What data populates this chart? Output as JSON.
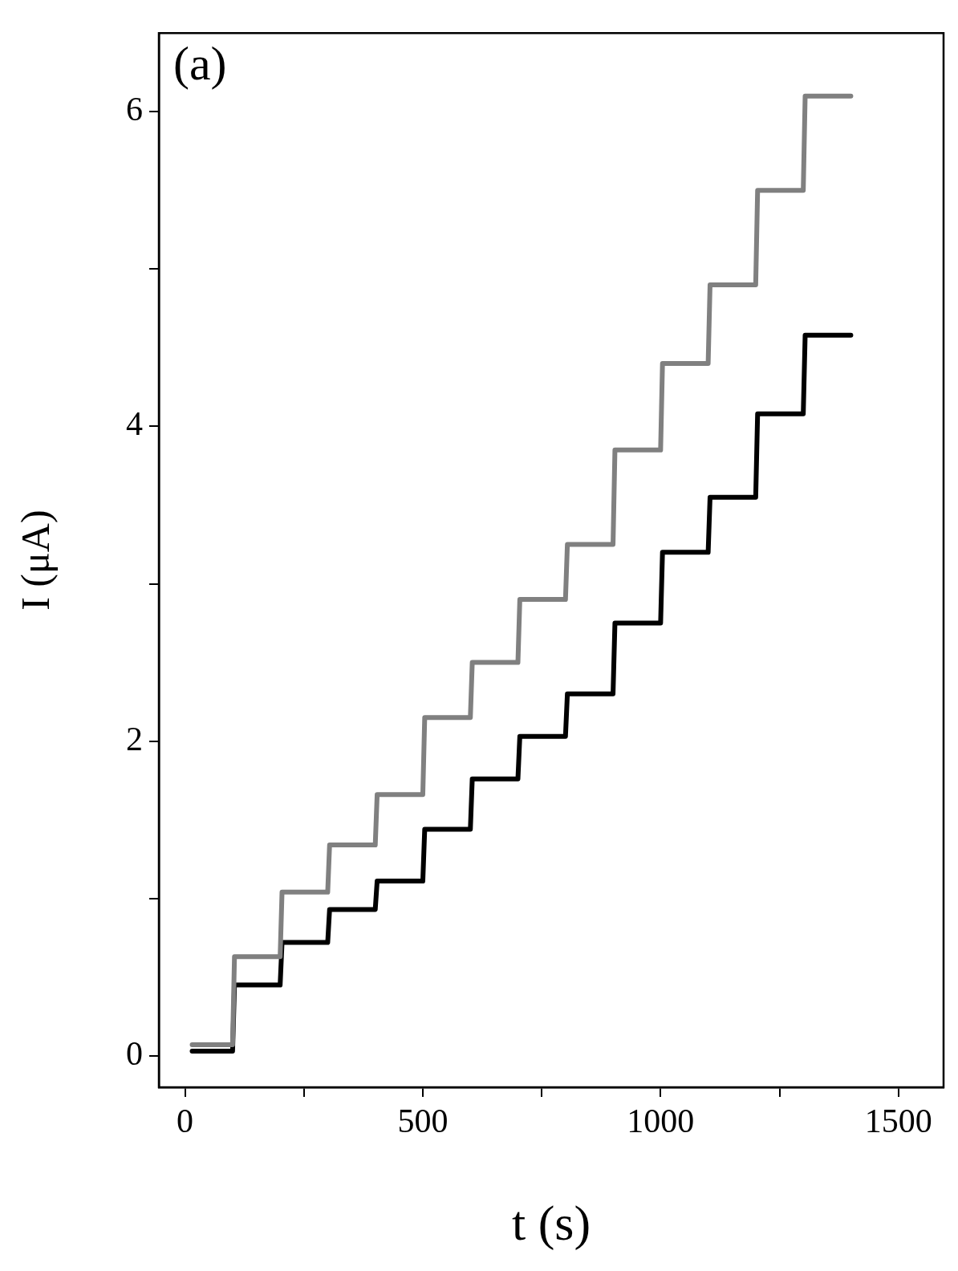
{
  "chart_data": {
    "type": "line",
    "xlabel": "t (s)",
    "ylabel": "I (μA)",
    "annotations": [
      "(a)"
    ],
    "xlim": [
      -55,
      1595
    ],
    "ylim": [
      -0.2,
      6.5
    ],
    "xticks": [
      0,
      {
        "value": 250,
        "label": null
      },
      500,
      {
        "value": 750,
        "label": null
      },
      1000,
      {
        "value": 1250,
        "label": null
      },
      1500
    ],
    "yticks": [
      0,
      {
        "value": 1,
        "label": null
      },
      2,
      {
        "value": 3,
        "label": null
      },
      4,
      {
        "value": 5,
        "label": null
      },
      6
    ],
    "grid": false,
    "legend": false,
    "marker": "none",
    "line_style": "solid",
    "series": [
      {
        "color": "#808080",
        "x": [
          15,
          100,
          104,
          200,
          204,
          300,
          304,
          400,
          404,
          500,
          504,
          600,
          604,
          700,
          704,
          800,
          804,
          900,
          904,
          1000,
          1004,
          1100,
          1104,
          1200,
          1204,
          1300,
          1304,
          1400
        ],
        "values": [
          0.07,
          0.07,
          0.63,
          0.63,
          1.04,
          1.04,
          1.34,
          1.34,
          1.66,
          1.66,
          2.15,
          2.15,
          2.5,
          2.5,
          2.9,
          2.9,
          3.25,
          3.25,
          3.85,
          3.85,
          4.4,
          4.4,
          4.9,
          4.9,
          5.5,
          5.5,
          6.1,
          6.1
        ]
      },
      {
        "color": "#000000",
        "x": [
          15,
          100,
          104,
          200,
          204,
          300,
          304,
          400,
          404,
          500,
          504,
          600,
          604,
          700,
          704,
          800,
          804,
          900,
          904,
          1000,
          1004,
          1100,
          1104,
          1200,
          1204,
          1300,
          1304,
          1400
        ],
        "values": [
          0.03,
          0.03,
          0.45,
          0.45,
          0.72,
          0.72,
          0.93,
          0.93,
          1.11,
          1.11,
          1.44,
          1.44,
          1.76,
          1.76,
          2.03,
          2.03,
          2.3,
          2.3,
          2.75,
          2.75,
          3.2,
          3.2,
          3.55,
          3.55,
          4.08,
          4.08,
          4.58,
          4.58
        ]
      }
    ]
  }
}
